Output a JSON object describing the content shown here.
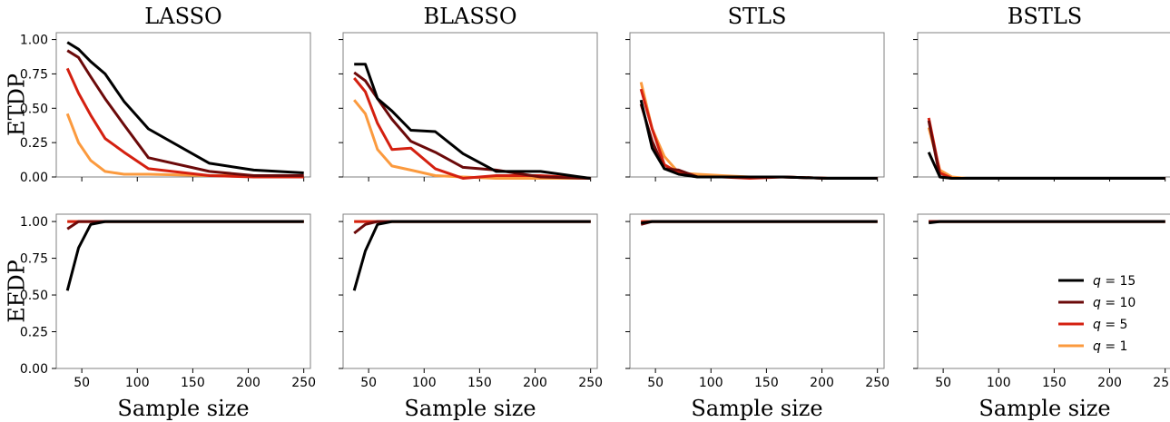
{
  "chart_data": {
    "type": "line",
    "x_categories": [
      40,
      50,
      60,
      75,
      90,
      110,
      135,
      165,
      205,
      250
    ],
    "xlabel": "Sample size",
    "xticks": [
      50,
      100,
      150,
      200,
      250
    ],
    "xlim": [
      27,
      256
    ],
    "rows": [
      {
        "ylabel": "ETDP",
        "ylim": [
          0,
          1.05
        ],
        "yticks": [
          "0.00",
          "0.25",
          "0.50",
          "0.75",
          "1.00"
        ]
      },
      {
        "ylabel": "EFDP",
        "ylim": [
          0,
          1.05
        ],
        "yticks": [
          "0.00",
          "0.25",
          "0.50",
          "0.75",
          "1.00"
        ]
      }
    ],
    "methods": [
      "LASSO",
      "BLASSO",
      "STLS",
      "BSTLS"
    ],
    "series_meta": [
      {
        "name": "q = 15",
        "legend_label": "$q = 15$",
        "color": "#000000"
      },
      {
        "name": "q = 10",
        "legend_label": "$q = 10$",
        "color": "#6b0a0a"
      },
      {
        "name": "q = 5",
        "legend_label": "$q = 5$",
        "color": "#d42010"
      },
      {
        "name": "q = 1",
        "legend_label": "$q = 1$",
        "color": "#fb9a3e"
      }
    ],
    "legend": {
      "location": "bottom-right of EFDP BSTLS panel",
      "entries": [
        {
          "prefix": "q",
          "value": "= 15",
          "color": "#000000"
        },
        {
          "prefix": "q",
          "value": "= 10",
          "color": "#6b0a0a"
        },
        {
          "prefix": "q",
          "value": "= 5",
          "color": "#d42010"
        },
        {
          "prefix": "q",
          "value": "= 1",
          "color": "#fb9a3e"
        }
      ]
    },
    "panels": [
      {
        "row": 0,
        "col": 0,
        "series": [
          {
            "name": "q = 15",
            "x": [
              37,
              47,
              58,
              71,
              88,
              110,
              165,
              205,
              250
            ],
            "y": [
              0.98,
              0.93,
              0.84,
              0.75,
              0.55,
              0.35,
              0.1,
              0.05,
              0.03
            ]
          },
          {
            "name": "q = 10",
            "x": [
              37,
              47,
              58,
              71,
              88,
              110,
              165,
              205,
              250
            ],
            "y": [
              0.92,
              0.87,
              0.73,
              0.57,
              0.38,
              0.14,
              0.04,
              0.01,
              0.01
            ]
          },
          {
            "name": "q = 5",
            "x": [
              37,
              47,
              58,
              71,
              88,
              110,
              165,
              205,
              250
            ],
            "y": [
              0.79,
              0.61,
              0.45,
              0.28,
              0.18,
              0.06,
              0.01,
              0.0,
              0.0
            ]
          },
          {
            "name": "q = 1",
            "x": [
              37,
              47,
              58,
              71,
              88,
              110,
              165,
              205,
              250
            ],
            "y": [
              0.46,
              0.25,
              0.12,
              0.04,
              0.02,
              0.02,
              0.01,
              0.01,
              0.0
            ]
          }
        ]
      },
      {
        "row": 0,
        "col": 1,
        "series": [
          {
            "name": "q = 15",
            "x": [
              37,
              47,
              58,
              71,
              88,
              110,
              135,
              165,
              205,
              250
            ],
            "y": [
              0.82,
              0.82,
              0.57,
              0.48,
              0.34,
              0.33,
              0.17,
              0.04,
              0.04,
              -0.01
            ]
          },
          {
            "name": "q = 10",
            "x": [
              37,
              47,
              58,
              71,
              88,
              110,
              135,
              165,
              205,
              250
            ],
            "y": [
              0.76,
              0.7,
              0.57,
              0.42,
              0.26,
              0.18,
              0.07,
              0.05,
              0.0,
              -0.01
            ]
          },
          {
            "name": "q = 5",
            "x": [
              37,
              47,
              58,
              71,
              88,
              110,
              135,
              165,
              205,
              250
            ],
            "y": [
              0.72,
              0.62,
              0.39,
              0.2,
              0.21,
              0.06,
              -0.01,
              0.01,
              0.01,
              -0.01
            ]
          },
          {
            "name": "q = 1",
            "x": [
              37,
              47,
              58,
              71,
              88,
              110,
              135,
              165,
              205,
              250
            ],
            "y": [
              0.56,
              0.46,
              0.2,
              0.08,
              0.05,
              0.01,
              0.0,
              -0.01,
              -0.01,
              -0.01
            ]
          }
        ]
      },
      {
        "row": 0,
        "col": 2,
        "series": [
          {
            "name": "q = 15",
            "x": [
              37,
              47,
              58,
              71,
              88,
              110,
              135,
              165,
              205,
              250
            ],
            "y": [
              0.56,
              0.21,
              0.06,
              0.02,
              0.0,
              0.0,
              0.0,
              0.0,
              -0.01,
              -0.01
            ]
          },
          {
            "name": "q = 10",
            "x": [
              37,
              47,
              58,
              71,
              88,
              110,
              135,
              165,
              205,
              250
            ],
            "y": [
              0.53,
              0.26,
              0.06,
              0.05,
              0.0,
              0.0,
              0.0,
              0.0,
              -0.01,
              -0.01
            ]
          },
          {
            "name": "q = 5",
            "x": [
              37,
              47,
              58,
              71,
              88,
              110,
              135,
              165,
              205,
              250
            ],
            "y": [
              0.64,
              0.35,
              0.09,
              0.03,
              0.0,
              0.0,
              -0.01,
              0.0,
              -0.01,
              -0.01
            ]
          },
          {
            "name": "q = 1",
            "x": [
              37,
              47,
              58,
              71,
              88,
              110,
              135,
              165,
              205,
              250
            ],
            "y": [
              0.69,
              0.35,
              0.15,
              0.03,
              0.02,
              0.01,
              0.0,
              0.0,
              -0.01,
              -0.01
            ]
          }
        ]
      },
      {
        "row": 0,
        "col": 3,
        "series": [
          {
            "name": "q = 15",
            "x": [
              37,
              47,
              58,
              71,
              88,
              110,
              135,
              165,
              205,
              250
            ],
            "y": [
              0.18,
              0.0,
              -0.01,
              -0.01,
              -0.01,
              -0.01,
              -0.01,
              -0.01,
              -0.01,
              -0.01
            ]
          },
          {
            "name": "q = 10",
            "x": [
              37,
              47,
              58,
              71,
              88,
              110,
              135,
              165,
              205,
              250
            ],
            "y": [
              0.41,
              0.0,
              -0.01,
              -0.01,
              -0.01,
              -0.01,
              -0.01,
              -0.01,
              -0.01,
              -0.01
            ]
          },
          {
            "name": "q = 5",
            "x": [
              37,
              47,
              58,
              71,
              88,
              110,
              135,
              165,
              205,
              250
            ],
            "y": [
              0.43,
              0.03,
              -0.01,
              -0.01,
              -0.01,
              -0.01,
              -0.01,
              -0.01,
              -0.01,
              -0.01
            ]
          },
          {
            "name": "q = 1",
            "x": [
              37,
              47,
              58,
              71,
              88,
              110,
              135,
              165,
              205,
              250
            ],
            "y": [
              0.36,
              0.05,
              0.0,
              -0.01,
              -0.01,
              -0.01,
              -0.01,
              -0.01,
              -0.01,
              -0.01
            ]
          }
        ]
      },
      {
        "row": 1,
        "col": 0,
        "series": [
          {
            "name": "q = 15",
            "x": [
              37,
              47,
              58,
              71,
              88,
              110,
              135,
              165,
              205,
              250
            ],
            "y": [
              0.53,
              0.82,
              0.98,
              1.0,
              1.0,
              1.0,
              1.0,
              1.0,
              1.0,
              1.0
            ]
          },
          {
            "name": "q = 10",
            "x": [
              37,
              47,
              58,
              71,
              88,
              110,
              135,
              165,
              205,
              250
            ],
            "y": [
              0.95,
              1.0,
              1.0,
              1.0,
              1.0,
              1.0,
              1.0,
              1.0,
              1.0,
              1.0
            ]
          },
          {
            "name": "q = 5",
            "x": [
              37,
              47,
              58,
              71,
              88,
              110,
              135,
              165,
              205,
              250
            ],
            "y": [
              1.0,
              1.0,
              1.0,
              1.0,
              1.0,
              1.0,
              1.0,
              1.0,
              1.0,
              1.0
            ]
          },
          {
            "name": "q = 1",
            "x": [
              37,
              47,
              58,
              71,
              88,
              110,
              135,
              165,
              205,
              250
            ],
            "y": [
              1.0,
              1.0,
              1.0,
              1.0,
              1.0,
              1.0,
              1.0,
              1.0,
              1.0,
              1.0
            ]
          }
        ]
      },
      {
        "row": 1,
        "col": 1,
        "series": [
          {
            "name": "q = 15",
            "x": [
              37,
              47,
              58,
              71,
              88,
              110,
              135,
              165,
              205,
              250
            ],
            "y": [
              0.53,
              0.8,
              0.98,
              1.0,
              1.0,
              1.0,
              1.0,
              1.0,
              1.0,
              1.0
            ]
          },
          {
            "name": "q = 10",
            "x": [
              37,
              47,
              58,
              71,
              88,
              110,
              135,
              165,
              205,
              250
            ],
            "y": [
              0.92,
              0.98,
              1.0,
              1.0,
              1.0,
              1.0,
              1.0,
              1.0,
              1.0,
              1.0
            ]
          },
          {
            "name": "q = 5",
            "x": [
              37,
              47,
              58,
              71,
              88,
              110,
              135,
              165,
              205,
              250
            ],
            "y": [
              1.0,
              1.0,
              1.0,
              1.0,
              1.0,
              1.0,
              1.0,
              1.0,
              1.0,
              1.0
            ]
          },
          {
            "name": "q = 1",
            "x": [
              37,
              47,
              58,
              71,
              88,
              110,
              135,
              165,
              205,
              250
            ],
            "y": [
              1.0,
              1.0,
              1.0,
              1.0,
              1.0,
              1.0,
              1.0,
              1.0,
              1.0,
              1.0
            ]
          }
        ]
      },
      {
        "row": 1,
        "col": 2,
        "series": [
          {
            "name": "q = 15",
            "x": [
              37,
              47,
              58,
              71,
              88,
              110,
              135,
              165,
              205,
              250
            ],
            "y": [
              0.99,
              1.0,
              1.0,
              1.0,
              1.0,
              1.0,
              1.0,
              1.0,
              1.0,
              1.0
            ]
          },
          {
            "name": "q = 10",
            "x": [
              37,
              47,
              58,
              71,
              88,
              110,
              135,
              165,
              205,
              250
            ],
            "y": [
              0.98,
              1.0,
              1.0,
              1.0,
              1.0,
              1.0,
              1.0,
              1.0,
              1.0,
              1.0
            ]
          },
          {
            "name": "q = 5",
            "x": [
              37,
              47,
              58,
              71,
              88,
              110,
              135,
              165,
              205,
              250
            ],
            "y": [
              1.0,
              1.0,
              1.0,
              1.0,
              1.0,
              1.0,
              1.0,
              1.0,
              1.0,
              1.0
            ]
          },
          {
            "name": "q = 1",
            "x": [
              37,
              47,
              58,
              71,
              88,
              110,
              135,
              165,
              205,
              250
            ],
            "y": [
              1.0,
              1.0,
              1.0,
              1.0,
              1.0,
              1.0,
              1.0,
              1.0,
              1.0,
              1.0
            ]
          }
        ]
      },
      {
        "row": 1,
        "col": 3,
        "series": [
          {
            "name": "q = 15",
            "x": [
              37,
              47,
              58,
              71,
              88,
              110,
              135,
              165,
              205,
              250
            ],
            "y": [
              0.99,
              1.0,
              1.0,
              1.0,
              1.0,
              1.0,
              1.0,
              1.0,
              1.0,
              1.0
            ]
          },
          {
            "name": "q = 10",
            "x": [
              37,
              47,
              58,
              71,
              88,
              110,
              135,
              165,
              205,
              250
            ],
            "y": [
              1.0,
              1.0,
              1.0,
              1.0,
              1.0,
              1.0,
              1.0,
              1.0,
              1.0,
              1.0
            ]
          },
          {
            "name": "q = 5",
            "x": [
              37,
              47,
              58,
              71,
              88,
              110,
              135,
              165,
              205,
              250
            ],
            "y": [
              1.0,
              1.0,
              1.0,
              1.0,
              1.0,
              1.0,
              1.0,
              1.0,
              1.0,
              1.0
            ]
          },
          {
            "name": "q = 1",
            "x": [
              37,
              47,
              58,
              71,
              88,
              110,
              135,
              165,
              205,
              250
            ],
            "y": [
              1.0,
              1.0,
              1.0,
              1.0,
              1.0,
              1.0,
              1.0,
              1.0,
              1.0,
              1.0
            ]
          }
        ]
      }
    ]
  }
}
